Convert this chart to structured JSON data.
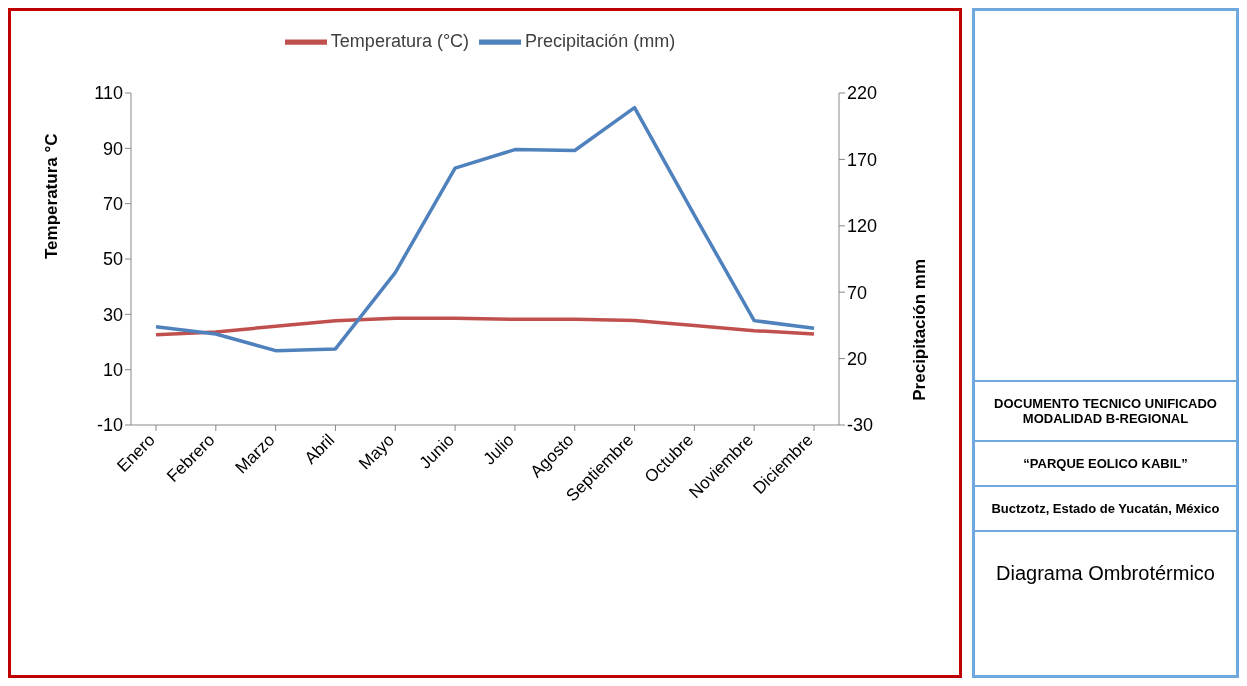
{
  "chart_data": {
    "type": "line",
    "title": "Diagrama Ombrotérmico",
    "ylabel": "Temperatura °C",
    "y2label": "Precipitación mm",
    "categories": [
      "Enero",
      "Febrero",
      "Marzo",
      "Abril",
      "Mayo",
      "Junio",
      "Julio",
      "Agosto",
      "Septiembre",
      "Octubre",
      "Noviembre",
      "Diciembre"
    ],
    "series": [
      {
        "name": "Temperatura (°C)",
        "color": "#c0504d",
        "values": [
          22.6,
          23.6,
          25.7,
          27.7,
          28.6,
          28.6,
          28.2,
          28.2,
          27.8,
          26,
          24.1,
          22.9
        ]
      },
      {
        "name": "Precipitación (mm)",
        "color": "#4f81bd",
        "axis": "y2",
        "values": [
          44,
          38.5,
          26,
          27.3,
          84.8,
          163.4,
          177.4,
          176.7,
          209,
          128,
          48.6,
          42.8
        ]
      }
    ],
    "ylim": [
      -10,
      110
    ],
    "yticks": [
      -10,
      10,
      30,
      50,
      70,
      90,
      110
    ],
    "y2lim": [
      -30,
      220
    ],
    "y2ticks": [
      -30,
      20,
      70,
      120,
      170,
      220
    ],
    "legend": "top",
    "marker": "none",
    "line_style": "solid",
    "annotations": [
      "DOCUMENTO  TECNICO UNIFICADO\nMODALIDAD  B-REGIONAL",
      "“PARQUE EOLICO KABIL”",
      "Buctzotz, Estado de Yucatán, México"
    ]
  }
}
